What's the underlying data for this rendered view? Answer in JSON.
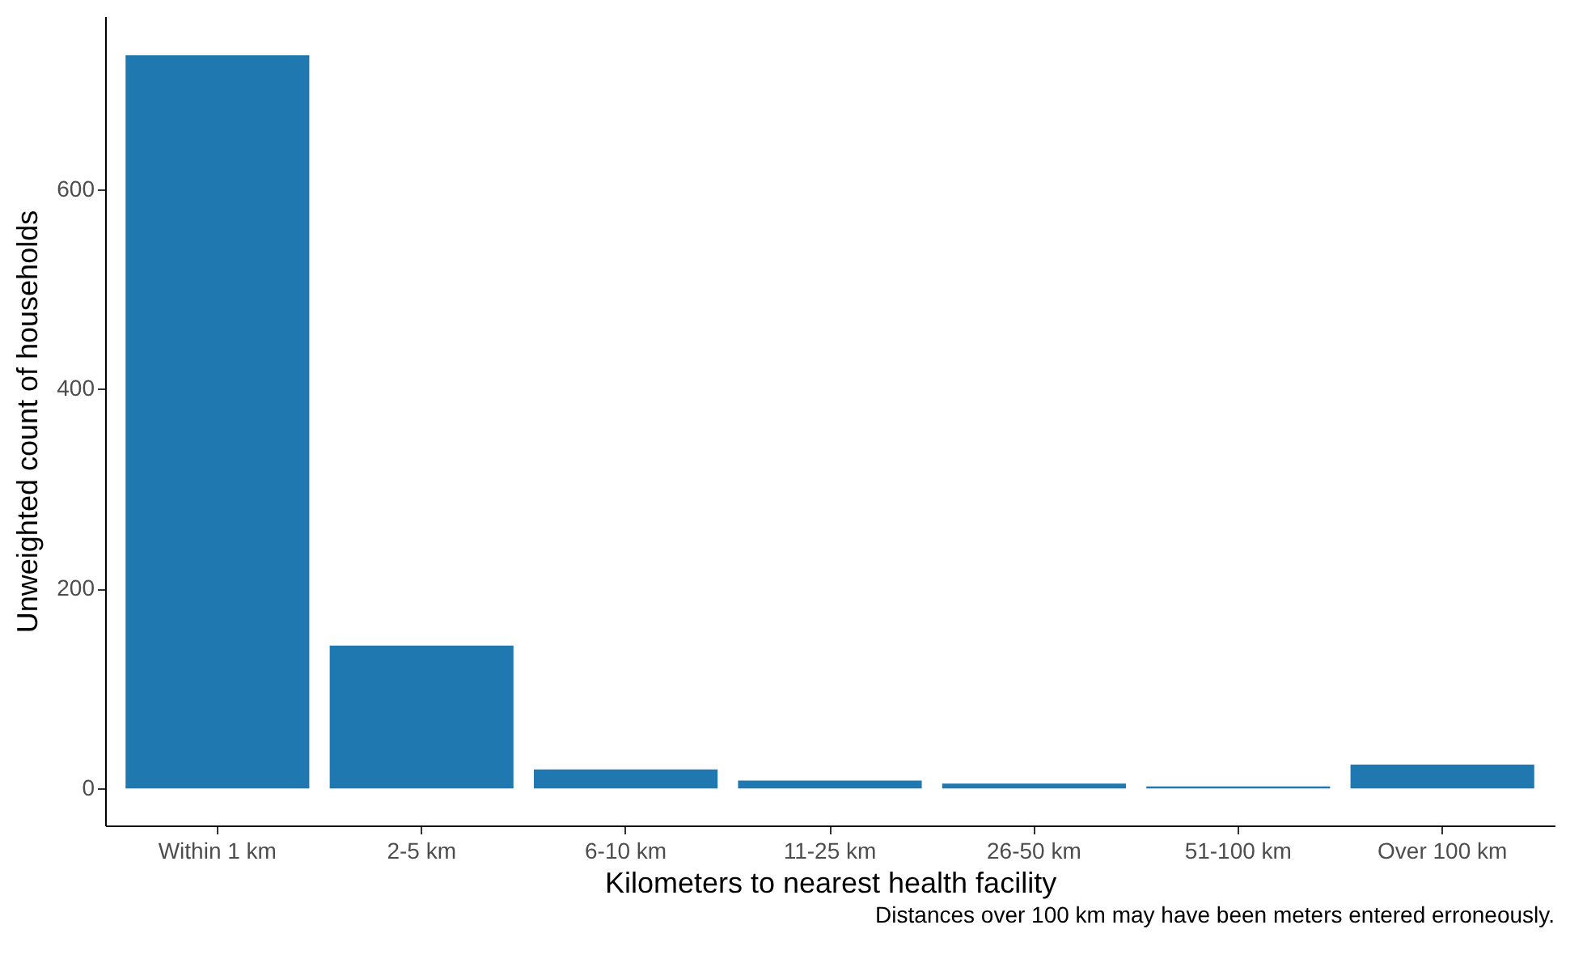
{
  "chart_data": {
    "type": "bar",
    "xlabel": "Kilometers to nearest health facility",
    "ylabel": "Unweighted count of households",
    "categories": [
      "Within 1 km",
      "2-5 km",
      "6-10 km",
      "11-25 km",
      "26-50 km",
      "51-100 km",
      "Over 100 km"
    ],
    "values": [
      734,
      143,
      19,
      8,
      5,
      2,
      24
    ],
    "color": "#1f78b0",
    "ylim": [
      -37,
      773
    ],
    "yticks": [
      0,
      200,
      400,
      600
    ],
    "grid": false,
    "annotations": [
      "Distances over 100 km may have been meters entered erroneously."
    ]
  }
}
